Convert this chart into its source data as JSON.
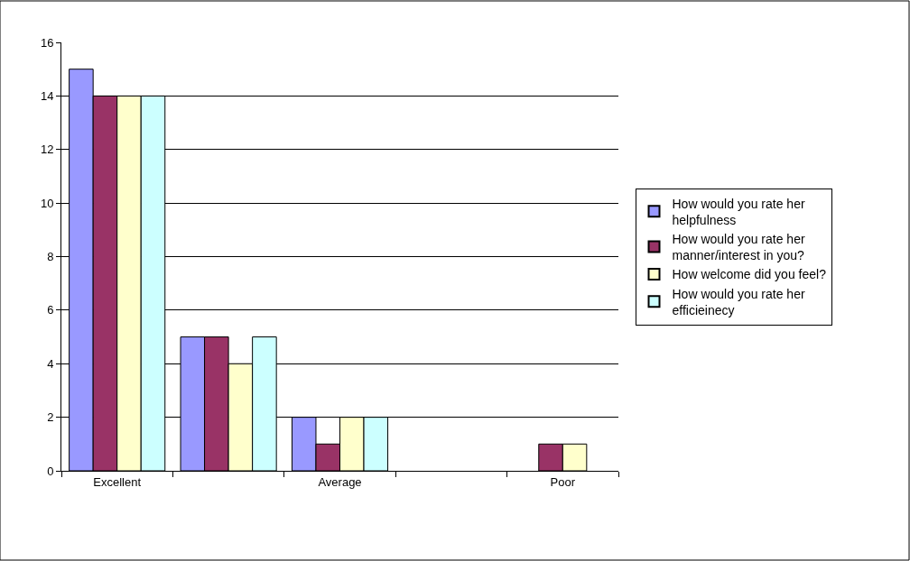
{
  "chart_data": {
    "type": "bar",
    "categories": [
      "Excellent",
      null,
      "Average",
      null,
      "Poor"
    ],
    "series": [
      {
        "name": "How would you rate her helpfulness",
        "color": "#9999ff",
        "values": [
          15,
          5,
          2,
          0,
          0
        ]
      },
      {
        "name": "How would you rate her manner/interest in you?",
        "color": "#993366",
        "values": [
          14,
          5,
          1,
          0,
          1
        ]
      },
      {
        "name": "How welcome did you feel?",
        "color": "#ffffcc",
        "values": [
          14,
          4,
          2,
          0,
          1
        ]
      },
      {
        "name": "How would you rate her efficieinecy",
        "color": "#ccffff",
        "values": [
          14,
          5,
          2,
          0,
          0
        ]
      }
    ],
    "ylim": [
      0,
      16
    ],
    "yticks": [
      0,
      2,
      4,
      6,
      8,
      10,
      12,
      14,
      16
    ],
    "grid": "y",
    "legend": "right"
  }
}
